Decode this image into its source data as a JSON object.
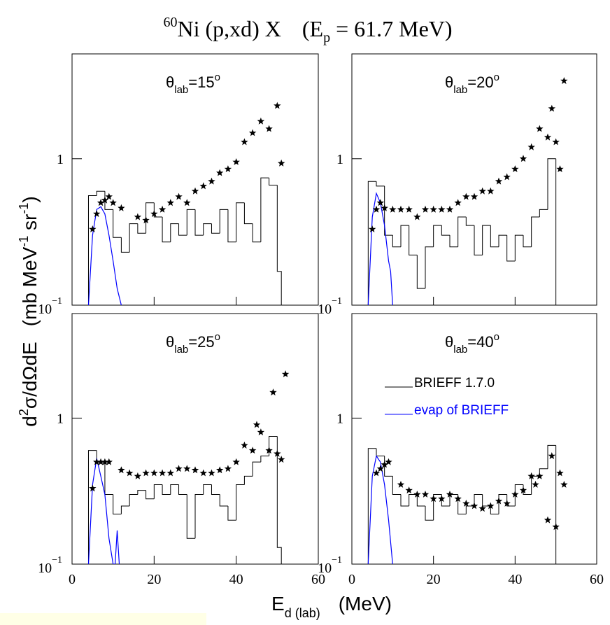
{
  "figure": {
    "title": [
      "60",
      "Ni (p,xd) X",
      "(E",
      "p",
      " = 61.7 MeV)"
    ],
    "y_label": [
      "d",
      "2",
      "σ/dΩdE",
      "(mb MeV",
      "-1",
      " sr",
      "-1",
      ")"
    ],
    "x_label": [
      "E",
      "d (lab)",
      "(MeV)"
    ]
  },
  "chart_data": [
    {
      "type": "histogram",
      "label": [
        "θ",
        "lab",
        "=15",
        "o"
      ],
      "log_y": true,
      "xlim": [
        0,
        60
      ],
      "xticks": [
        0,
        20,
        40,
        60
      ],
      "ylim": [
        0.1,
        5.2
      ],
      "yticks": [
        {
          "value": 0.1,
          "label": "10",
          "sup": "−1"
        },
        1
      ],
      "series": [
        {
          "style": "step",
          "color": "#000000",
          "bins": [
            4,
            6,
            8,
            10,
            12,
            14,
            16,
            18,
            20,
            22,
            24,
            26,
            28,
            30,
            32,
            34,
            36,
            38,
            40,
            42,
            44,
            46,
            48,
            50,
            51
          ],
          "values": [
            0.56,
            0.6,
            0.45,
            0.29,
            0.23,
            0.36,
            0.31,
            0.5,
            0.4,
            0.27,
            0.36,
            0.3,
            0.45,
            0.3,
            0.36,
            0.31,
            0.45,
            0.27,
            0.5,
            0.36,
            0.27,
            0.74,
            0.66,
            0.17
          ]
        },
        {
          "style": "line",
          "color": "#0000ff",
          "x": [
            4,
            5,
            6,
            7,
            8,
            9,
            10,
            11,
            12
          ],
          "values": [
            0.1,
            0.3,
            0.45,
            0.47,
            0.42,
            0.3,
            0.2,
            0.13,
            0.1
          ]
        },
        {
          "style": "star",
          "color": "#000000",
          "x": [
            5,
            6,
            7,
            8,
            9,
            10,
            12,
            16,
            18,
            20,
            22,
            24,
            26,
            28,
            30,
            32,
            34,
            36,
            38,
            40,
            42,
            44,
            46,
            48,
            50,
            51
          ],
          "values": [
            0.33,
            0.42,
            0.5,
            0.52,
            0.55,
            0.5,
            0.46,
            0.4,
            0.38,
            0.42,
            0.45,
            0.5,
            0.55,
            0.5,
            0.6,
            0.65,
            0.7,
            0.8,
            0.85,
            0.95,
            1.3,
            1.5,
            1.8,
            1.6,
            2.3,
            0.93
          ]
        }
      ]
    },
    {
      "type": "histogram",
      "label": [
        "θ",
        "lab",
        "=20",
        "o"
      ],
      "log_y": true,
      "xlim": [
        0,
        60
      ],
      "xticks": [
        0,
        20,
        40,
        60
      ],
      "ylim": [
        0.1,
        5.2
      ],
      "yticks": [
        {
          "value": 0.1,
          "label": "10",
          "sup": "−1"
        },
        1
      ],
      "series": [
        {
          "style": "step",
          "color": "#000000",
          "bins": [
            4,
            6,
            8,
            10,
            12,
            14,
            16,
            18,
            20,
            22,
            24,
            26,
            28,
            30,
            32,
            34,
            36,
            38,
            40,
            42,
            44,
            46,
            48,
            50,
            51
          ],
          "values": [
            0.7,
            0.65,
            0.3,
            0.25,
            0.35,
            0.22,
            0.13,
            0.25,
            0.35,
            0.3,
            0.25,
            0.4,
            0.35,
            0.22,
            0.35,
            0.25,
            0.3,
            0.2,
            0.3,
            0.25,
            0.4,
            0.45,
            1.0,
            0.1
          ]
        },
        {
          "style": "line",
          "color": "#0000ff",
          "x": [
            4,
            5,
            6,
            7,
            8,
            9,
            9.5,
            10
          ],
          "values": [
            0.1,
            0.4,
            0.58,
            0.5,
            0.35,
            0.2,
            0.17,
            0.1
          ]
        },
        {
          "style": "star",
          "color": "#000000",
          "x": [
            5,
            6,
            7,
            8,
            10,
            12,
            14,
            16,
            18,
            20,
            22,
            24,
            26,
            28,
            30,
            32,
            34,
            36,
            38,
            40,
            42,
            44,
            46,
            48,
            49,
            50,
            51,
            52
          ],
          "values": [
            0.33,
            0.45,
            0.5,
            0.46,
            0.45,
            0.45,
            0.45,
            0.4,
            0.45,
            0.45,
            0.45,
            0.45,
            0.5,
            0.55,
            0.55,
            0.6,
            0.6,
            0.7,
            0.75,
            0.85,
            1.0,
            1.2,
            1.6,
            1.4,
            2.2,
            1.3,
            0.85,
            3.4
          ]
        }
      ]
    },
    {
      "type": "histogram",
      "label": [
        "θ",
        "lab",
        "=25",
        "o"
      ],
      "log_y": true,
      "xlim": [
        0,
        60
      ],
      "xticks": [
        0,
        20,
        40,
        60
      ],
      "ylim": [
        0.1,
        5.2
      ],
      "yticks": [
        {
          "value": 0.1,
          "label": "10",
          "sup": "−1"
        },
        1
      ],
      "series": [
        {
          "style": "step",
          "color": "#000000",
          "bins": [
            4,
            6,
            8,
            10,
            12,
            14,
            16,
            18,
            20,
            22,
            24,
            26,
            28,
            30,
            32,
            34,
            36,
            38,
            40,
            42,
            44,
            46,
            48,
            50,
            51
          ],
          "values": [
            0.6,
            0.5,
            0.3,
            0.22,
            0.25,
            0.3,
            0.32,
            0.28,
            0.35,
            0.3,
            0.35,
            0.3,
            0.15,
            0.3,
            0.35,
            0.3,
            0.25,
            0.2,
            0.35,
            0.4,
            0.5,
            0.55,
            0.75,
            0.13
          ]
        },
        {
          "style": "line",
          "color": "#0000ff",
          "x": [
            4,
            5,
            6,
            7,
            8,
            9,
            10,
            10.5,
            11,
            11.5
          ],
          "values": [
            0.1,
            0.35,
            0.53,
            0.4,
            0.3,
            0.15,
            0.1,
            0.1,
            0.17,
            0.1
          ]
        },
        {
          "style": "star",
          "color": "#000000",
          "x": [
            5,
            6,
            7,
            8,
            9,
            12,
            14,
            16,
            18,
            20,
            22,
            24,
            26,
            28,
            30,
            32,
            34,
            36,
            38,
            40,
            42,
            44,
            45,
            46,
            48,
            49,
            50,
            51,
            52
          ],
          "values": [
            0.33,
            0.5,
            0.5,
            0.5,
            0.5,
            0.44,
            0.42,
            0.4,
            0.42,
            0.42,
            0.42,
            0.42,
            0.45,
            0.45,
            0.44,
            0.42,
            0.42,
            0.44,
            0.45,
            0.5,
            0.65,
            0.6,
            0.9,
            0.8,
            0.6,
            1.5,
            0.57,
            0.52,
            2.0
          ]
        }
      ]
    },
    {
      "type": "histogram",
      "label": [
        "θ",
        "lab",
        "=40",
        "o"
      ],
      "log_y": true,
      "xlim": [
        0,
        60
      ],
      "xticks": [
        0,
        20,
        40,
        60
      ],
      "ylim": [
        0.1,
        5.2
      ],
      "yticks": [
        {
          "value": 0.1,
          "label": "10",
          "sup": "−1"
        },
        1
      ],
      "series": [
        {
          "style": "step",
          "name": "BRIEFF 1.7.0",
          "color": "#000000",
          "bins": [
            4,
            6,
            8,
            10,
            12,
            14,
            16,
            18,
            20,
            22,
            24,
            26,
            28,
            30,
            32,
            34,
            36,
            38,
            40,
            42,
            44,
            46,
            48,
            50,
            51
          ],
          "values": [
            0.62,
            0.55,
            0.4,
            0.3,
            0.25,
            0.3,
            0.25,
            0.2,
            0.3,
            0.25,
            0.3,
            0.22,
            0.25,
            0.3,
            0.25,
            0.22,
            0.3,
            0.25,
            0.35,
            0.3,
            0.4,
            0.45,
            0.65,
            0.1
          ]
        },
        {
          "style": "line",
          "name": "evap of BRIEFF",
          "color": "#0000ff",
          "x": [
            4,
            5,
            6,
            7,
            8,
            9,
            10
          ],
          "values": [
            0.1,
            0.4,
            0.55,
            0.5,
            0.35,
            0.2,
            0.1
          ]
        },
        {
          "style": "star",
          "color": "#000000",
          "x": [
            6,
            7,
            8,
            9,
            12,
            14,
            16,
            18,
            20,
            22,
            24,
            26,
            28,
            30,
            32,
            34,
            36,
            38,
            40,
            42,
            44,
            45,
            46,
            48,
            49,
            50,
            51,
            52
          ],
          "values": [
            0.42,
            0.45,
            0.48,
            0.5,
            0.35,
            0.32,
            0.3,
            0.3,
            0.28,
            0.28,
            0.3,
            0.28,
            0.26,
            0.25,
            0.24,
            0.25,
            0.27,
            0.26,
            0.3,
            0.32,
            0.4,
            0.35,
            0.4,
            0.2,
            0.55,
            0.18,
            0.42,
            0.35
          ]
        }
      ]
    }
  ]
}
